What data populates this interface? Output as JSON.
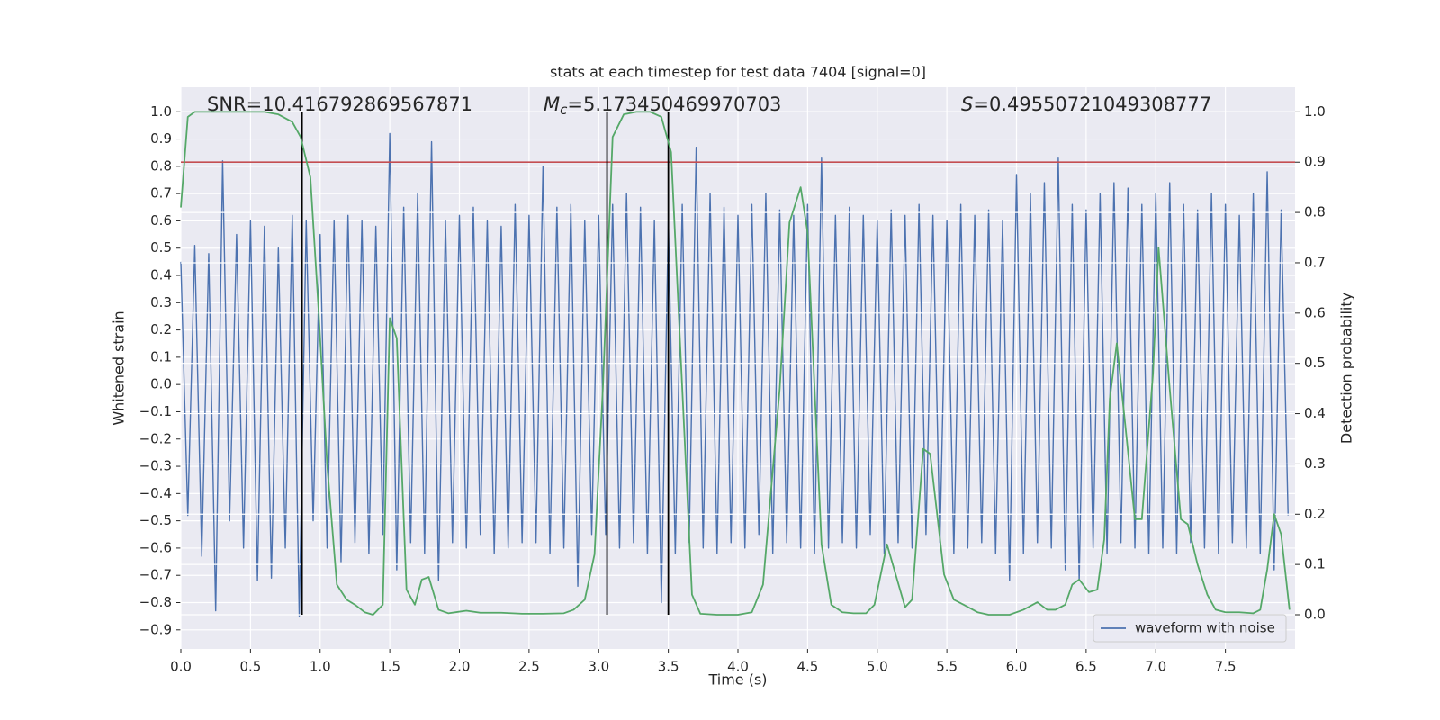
{
  "chart_data": {
    "type": "line",
    "title": "stats at each timestep for test data 7404 [signal=0]",
    "x_label": "Time (s)",
    "y_label": "Whitened strain",
    "y2_label": "Detection probability",
    "annotations": {
      "snr": "SNR=10.416792869567871",
      "chirp_mass": {
        "symbol": "M",
        "subscript": "c",
        "text": "=5.173450469970703"
      },
      "score": {
        "symbol": "S",
        "text": "=0.49550721049308777"
      }
    },
    "xlim": [
      0,
      8.0
    ],
    "ylim": [
      -0.97,
      1.09
    ],
    "y2lim": [
      -0.068,
      1.049
    ],
    "xticks": [
      {
        "value": 0,
        "label": "0.0"
      },
      0.5,
      {
        "value": 1,
        "label": "1.0"
      },
      1.5,
      {
        "value": 2,
        "label": "2.0"
      },
      2.5,
      {
        "value": 3,
        "label": "3.0"
      },
      3.5,
      {
        "value": 4,
        "label": "4.0"
      },
      4.5,
      {
        "value": 5,
        "label": "5.0"
      },
      5.5,
      {
        "value": 6,
        "label": "6.0"
      },
      6.5,
      {
        "value": 7,
        "label": "7.0"
      },
      7.5
    ],
    "yticks": [
      {
        "value": -0.9,
        "label": "−0.9"
      },
      {
        "value": -0.8,
        "label": "−0.8"
      },
      {
        "value": -0.7,
        "label": "−0.7"
      },
      {
        "value": -0.6,
        "label": "−0.6"
      },
      {
        "value": -0.5,
        "label": "−0.5"
      },
      {
        "value": -0.4,
        "label": "−0.4"
      },
      {
        "value": -0.3,
        "label": "−0.3"
      },
      {
        "value": -0.2,
        "label": "−0.2"
      },
      {
        "value": -0.1,
        "label": "−0.1"
      },
      {
        "value": 0,
        "label": "0.0"
      },
      0.1,
      0.2,
      0.3,
      0.4,
      0.5,
      0.6,
      0.7,
      0.8,
      0.9,
      {
        "value": 1,
        "label": "1.0"
      }
    ],
    "y2ticks": [
      {
        "value": 0,
        "label": "0.0"
      },
      0.1,
      0.2,
      0.3,
      0.4,
      0.5,
      0.6,
      0.7,
      0.8,
      0.9,
      {
        "value": 1,
        "label": "1.0"
      }
    ],
    "grid": true,
    "legend": "lower right",
    "series": [
      {
        "name": "waveform with noise",
        "color": "#4c72b0",
        "x": [
          0,
          0.05,
          0.1,
          0.15,
          0.2,
          0.25,
          0.3,
          0.35,
          0.4,
          0.45,
          0.5,
          0.55,
          0.6,
          0.65,
          0.7,
          0.75,
          0.8,
          0.85,
          0.9,
          0.95,
          1,
          1.05,
          1.1,
          1.15,
          1.2,
          1.25,
          1.3,
          1.35,
          1.4,
          1.45,
          1.5,
          1.55,
          1.6,
          1.65,
          1.7,
          1.75,
          1.8,
          1.85,
          1.9,
          1.95,
          2,
          2.05,
          2.1,
          2.15,
          2.2,
          2.25,
          2.3,
          2.35,
          2.4,
          2.45,
          2.5,
          2.55,
          2.6,
          2.65,
          2.7,
          2.75,
          2.8,
          2.85,
          2.9,
          2.95,
          3,
          3.05,
          3.1,
          3.15,
          3.2,
          3.25,
          3.3,
          3.35,
          3.4,
          3.45,
          3.5,
          3.55,
          3.6,
          3.65,
          3.7,
          3.75,
          3.8,
          3.85,
          3.9,
          3.95,
          4,
          4.05,
          4.1,
          4.15,
          4.2,
          4.25,
          4.3,
          4.35,
          4.4,
          4.45,
          4.5,
          4.55,
          4.6,
          4.65,
          4.7,
          4.75,
          4.8,
          4.85,
          4.9,
          4.95,
          5,
          5.05,
          5.1,
          5.15,
          5.2,
          5.25,
          5.3,
          5.35,
          5.4,
          5.45,
          5.5,
          5.55,
          5.6,
          5.65,
          5.7,
          5.75,
          5.8,
          5.85,
          5.9,
          5.95,
          6,
          6.05,
          6.1,
          6.15,
          6.2,
          6.25,
          6.3,
          6.35,
          6.4,
          6.45,
          6.5,
          6.55,
          6.6,
          6.65,
          6.7,
          6.75,
          6.8,
          6.85,
          6.9,
          6.95,
          7,
          7.05,
          7.1,
          7.15,
          7.2,
          7.25,
          7.3,
          7.35,
          7.4,
          7.45,
          7.5,
          7.55,
          7.6,
          7.65,
          7.7,
          7.75,
          7.8,
          7.85,
          7.9,
          7.95
        ],
        "values": [
          0.45,
          -0.48,
          0.51,
          -0.63,
          0.48,
          -0.83,
          0.82,
          -0.5,
          0.55,
          -0.6,
          0.6,
          -0.72,
          0.58,
          -0.71,
          0.5,
          -0.6,
          0.62,
          -0.85,
          0.6,
          -0.5,
          0.55,
          -0.6,
          0.6,
          -0.65,
          0.62,
          -0.58,
          0.6,
          -0.62,
          0.58,
          -0.55,
          0.92,
          -0.68,
          0.65,
          -0.58,
          0.7,
          -0.62,
          0.89,
          -0.72,
          0.6,
          -0.58,
          0.62,
          -0.6,
          0.65,
          -0.55,
          0.6,
          -0.62,
          0.58,
          -0.6,
          0.66,
          -0.58,
          0.62,
          -0.58,
          0.8,
          -0.62,
          0.65,
          -0.6,
          0.66,
          -0.74,
          0.6,
          -0.55,
          0.62,
          -0.55,
          0.66,
          -0.6,
          0.7,
          -0.58,
          0.65,
          -0.62,
          0.6,
          -0.8,
          0.6,
          -0.62,
          0.66,
          -0.58,
          0.87,
          -0.6,
          0.7,
          -0.62,
          0.65,
          -0.58,
          0.62,
          -0.6,
          0.66,
          -0.55,
          0.7,
          -0.62,
          0.64,
          -0.58,
          0.62,
          -0.6,
          0.66,
          -0.62,
          0.83,
          -0.6,
          0.62,
          -0.58,
          0.65,
          -0.6,
          0.62,
          -0.55,
          0.6,
          -0.62,
          0.64,
          -0.58,
          0.62,
          -0.6,
          0.66,
          -0.55,
          0.62,
          -0.58,
          0.6,
          -0.62,
          0.66,
          -0.6,
          0.62,
          -0.58,
          0.64,
          -0.62,
          0.6,
          -0.72,
          0.77,
          -0.62,
          0.7,
          -0.58,
          0.74,
          -0.6,
          0.83,
          -0.68,
          0.66,
          -0.72,
          0.64,
          -0.6,
          0.7,
          -0.62,
          0.74,
          -0.58,
          0.72,
          -0.6,
          0.66,
          -0.62,
          0.7,
          -0.6,
          0.74,
          -0.62,
          0.66,
          -0.58,
          0.64,
          -0.6,
          0.7,
          -0.62,
          0.66,
          -0.58,
          0.62,
          -0.6,
          0.7,
          -0.62,
          0.78,
          -0.68,
          0.64,
          -0.48
        ]
      },
      {
        "color": "#55a868",
        "axis": "y2",
        "x": [
          0,
          0.05,
          0.1,
          0.6,
          0.7,
          0.8,
          0.86,
          0.93,
          0.99,
          1.05,
          1.12,
          1.19,
          1.25,
          1.32,
          1.38,
          1.45,
          1.5,
          1.55,
          1.62,
          1.68,
          1.73,
          1.78,
          1.85,
          1.92,
          2.05,
          2.15,
          2.3,
          2.45,
          2.6,
          2.75,
          2.82,
          2.9,
          2.97,
          3.03,
          3.1,
          3.18,
          3.27,
          3.37,
          3.45,
          3.52,
          3.6,
          3.67,
          3.73,
          3.85,
          4.0,
          4.1,
          4.18,
          4.3,
          4.37,
          4.45,
          4.5,
          4.6,
          4.67,
          4.75,
          4.83,
          4.92,
          4.98,
          5.07,
          5.2,
          5.25,
          5.33,
          5.38,
          5.48,
          5.55,
          5.62,
          5.72,
          5.8,
          5.95,
          6.05,
          6.15,
          6.22,
          6.28,
          6.35,
          6.4,
          6.45,
          6.52,
          6.58,
          6.63,
          6.67,
          6.72,
          6.78,
          6.85,
          6.9,
          6.98,
          7.02,
          7.1,
          7.18,
          7.23,
          7.3,
          7.37,
          7.43,
          7.5,
          7.6,
          7.7,
          7.75,
          7.8,
          7.85,
          7.9,
          7.96
        ],
        "values": [
          0.81,
          0.99,
          1.0,
          1.0,
          0.995,
          0.98,
          0.95,
          0.87,
          0.6,
          0.3,
          0.06,
          0.03,
          0.02,
          0.005,
          0.0,
          0.02,
          0.59,
          0.55,
          0.05,
          0.02,
          0.07,
          0.075,
          0.01,
          0.003,
          0.008,
          0.004,
          0.004,
          0.002,
          0.002,
          0.003,
          0.01,
          0.03,
          0.12,
          0.45,
          0.95,
          0.995,
          1.0,
          1.0,
          0.99,
          0.92,
          0.45,
          0.04,
          0.002,
          0.0,
          0.0,
          0.005,
          0.06,
          0.45,
          0.78,
          0.85,
          0.76,
          0.14,
          0.02,
          0.005,
          0.003,
          0.003,
          0.02,
          0.14,
          0.015,
          0.03,
          0.33,
          0.32,
          0.08,
          0.03,
          0.02,
          0.005,
          0.0,
          0.0,
          0.01,
          0.025,
          0.01,
          0.01,
          0.02,
          0.06,
          0.07,
          0.045,
          0.05,
          0.15,
          0.43,
          0.54,
          0.38,
          0.19,
          0.19,
          0.48,
          0.73,
          0.45,
          0.19,
          0.18,
          0.1,
          0.04,
          0.01,
          0.005,
          0.005,
          0.003,
          0.01,
          0.09,
          0.2,
          0.16,
          0.01
        ]
      }
    ],
    "threshold": {
      "value": 0.9,
      "axis": "y2",
      "color": "#c44e52"
    },
    "vlines": {
      "x": [
        0.87,
        3.06,
        3.5
      ],
      "ymin": 0,
      "ymax": 1,
      "axis": "y2",
      "color": "#000000"
    }
  }
}
